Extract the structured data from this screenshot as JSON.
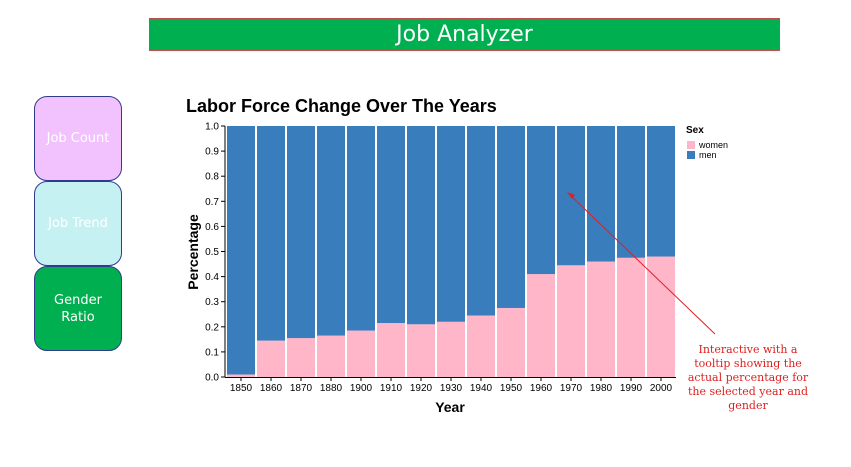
{
  "app": {
    "title": "Job Analyzer",
    "header_bg": "#00b050"
  },
  "nav": [
    {
      "label": "Job Count",
      "bg": "#f2c2ff",
      "color": "#ffffff"
    },
    {
      "label": "Job Trend",
      "bg": "#c6f1f3",
      "color": "#ffffff"
    },
    {
      "label": "Gender\nRatio",
      "bg": "#00b050",
      "color": "#ffffff"
    }
  ],
  "annotation": {
    "lines": [
      "Interactive with a",
      "tooltip showing the",
      "actual percentage for",
      "the selected year and",
      "gender"
    ],
    "color": "#e02020"
  },
  "chart_data": {
    "type": "bar",
    "stacked": true,
    "title": "Labor Force Change Over The Years",
    "xlabel": "Year",
    "ylabel": "Percentage",
    "ylim": [
      0,
      1
    ],
    "yticks": [
      "0.0",
      "0.1",
      "0.2",
      "0.3",
      "0.4",
      "0.5",
      "0.6",
      "0.7",
      "0.8",
      "0.9",
      "1.0"
    ],
    "categories": [
      "1850",
      "1860",
      "1870",
      "1880",
      "1900",
      "1910",
      "1920",
      "1930",
      "1940",
      "1950",
      "1960",
      "1970",
      "1980",
      "1990",
      "2000"
    ],
    "legend": {
      "title": "Sex",
      "position": "top-right"
    },
    "series": [
      {
        "name": "women",
        "color": "#ffb6c8",
        "values": [
          0.01,
          0.145,
          0.155,
          0.165,
          0.185,
          0.215,
          0.21,
          0.22,
          0.245,
          0.275,
          0.41,
          0.445,
          0.46,
          0.475,
          0.48
        ]
      },
      {
        "name": "men",
        "color": "#3a7dbd",
        "values": [
          0.99,
          0.855,
          0.845,
          0.835,
          0.815,
          0.785,
          0.79,
          0.78,
          0.755,
          0.725,
          0.59,
          0.555,
          0.54,
          0.525,
          0.52
        ]
      }
    ]
  }
}
